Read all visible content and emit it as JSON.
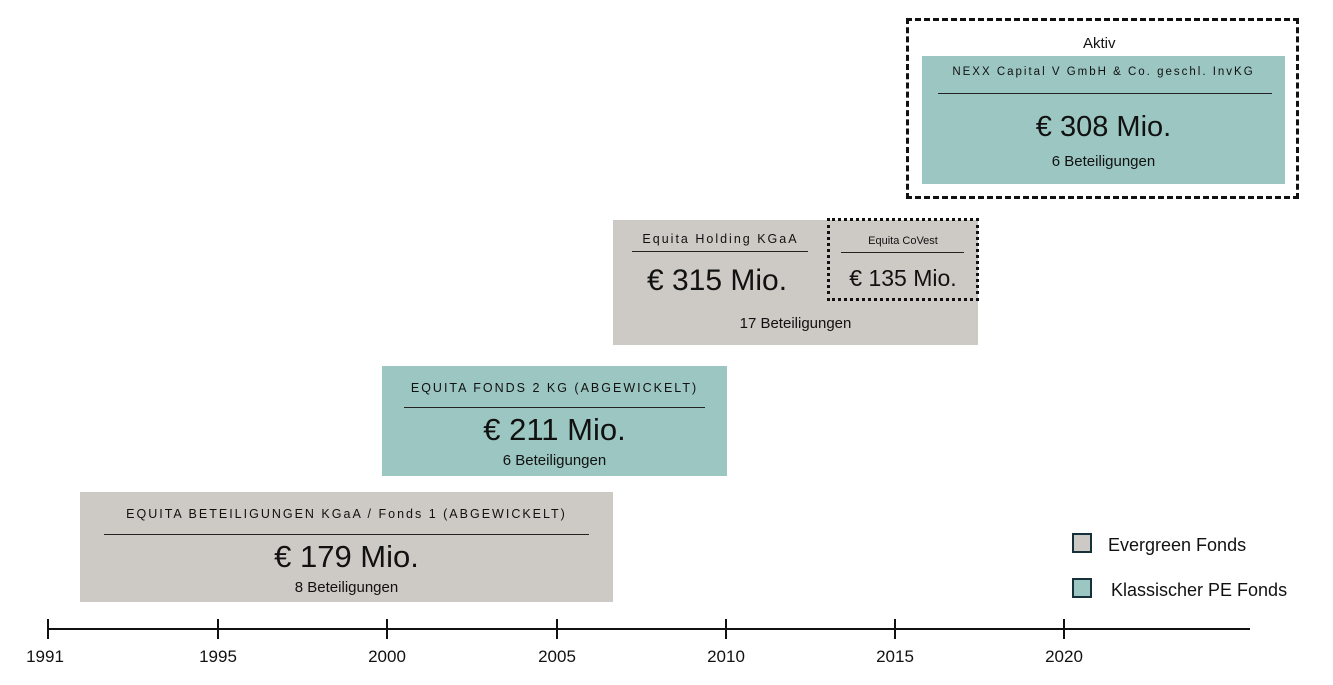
{
  "active_label": "Aktiv",
  "funds": [
    {
      "title": "EQUITA BETEILIGUNGEN KGaA / Fonds 1 (ABGEWICKELT)",
      "amount": "€ 179 Mio.",
      "count": "8 Beteiligungen",
      "type": "evergreen"
    },
    {
      "title": "EQUITA FONDS 2 KG (ABGEWICKELT)",
      "amount": "€ 211 Mio.",
      "count": "6 Beteiligungen",
      "type": "classic"
    },
    {
      "title": "Equita Holding KGaA",
      "amount": "€ 315 Mio.",
      "count": "17 Beteiligungen",
      "type": "evergreen"
    },
    {
      "title": "Equita CoVest",
      "amount": "€ 135 Mio.",
      "type": "evergreen"
    },
    {
      "title": "NEXX Capital V GmbH & Co. geschl. InvKG",
      "amount": "€ 308 Mio.",
      "count": "6 Beteiligungen",
      "type": "classic"
    }
  ],
  "legend": [
    {
      "label": "Evergreen Fonds",
      "color": "#cdc9c4"
    },
    {
      "label": "Klassischer PE Fonds",
      "color": "#9bc6c1"
    }
  ],
  "timeline": {
    "ticks": [
      "1991",
      "1995",
      "2000",
      "2005",
      "2010",
      "2015",
      "2020"
    ]
  }
}
